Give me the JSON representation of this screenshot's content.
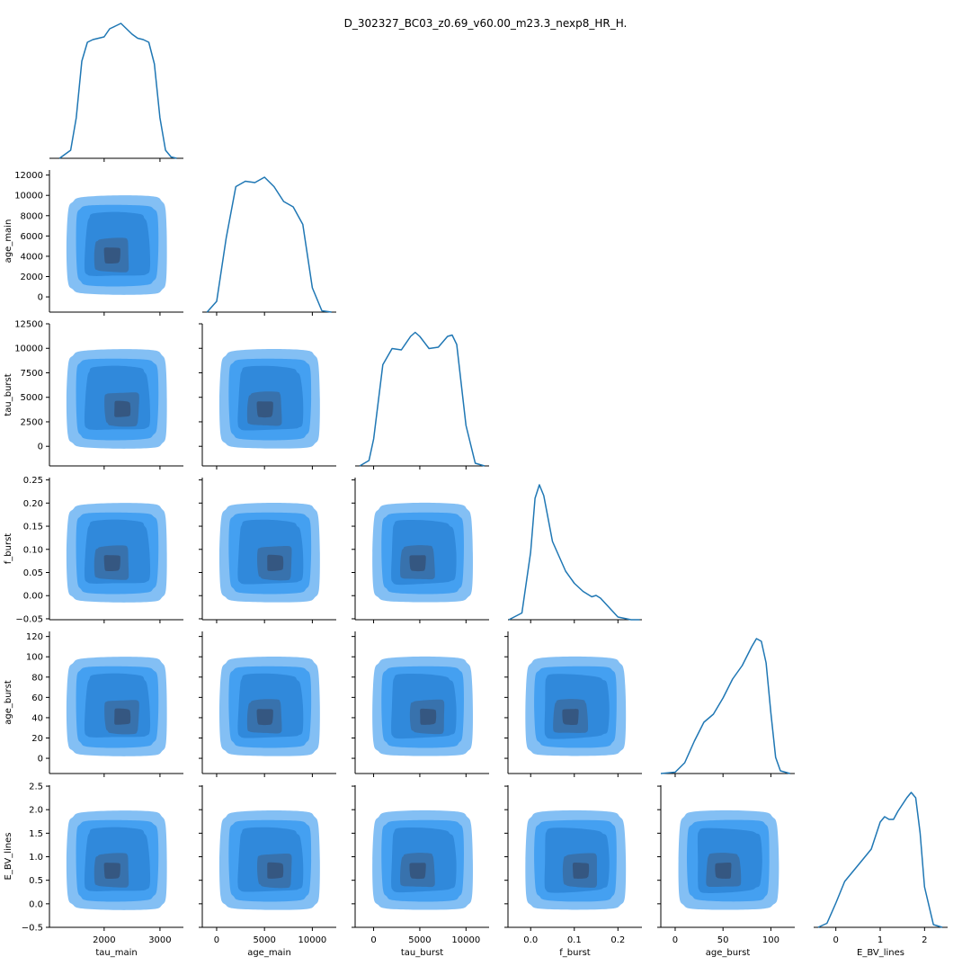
{
  "figure": {
    "title": "D_302327_BC03_z0.69_v60.00_m23.3_nexp8_HR_H."
  },
  "colors": {
    "line": "#1f77b4",
    "fill": "#3a9af0",
    "dark": "#2f4f6f",
    "axis": "#000000"
  },
  "chart_data": {
    "type": "pairplot",
    "variables": [
      "tau_main",
      "age_main",
      "tau_burst",
      "f_burst",
      "age_burst",
      "E_BV_lines"
    ],
    "axes": {
      "tau_main": {
        "label": "tau_main",
        "lim": [
          1020,
          3420
        ],
        "ticks": [
          2000,
          3000
        ],
        "tick_labels": [
          "2000",
          "3000"
        ]
      },
      "age_main": {
        "label": "age_main",
        "lim": [
          -1500,
          12500
        ],
        "ticks": [
          0,
          5000,
          10000
        ],
        "tick_labels": [
          "0",
          "5000",
          "10000"
        ]
      },
      "tau_burst": {
        "label": "tau_burst",
        "lim": [
          -2000,
          12500
        ],
        "ticks": [
          0,
          5000,
          10000
        ],
        "tick_labels": [
          "0",
          "5000",
          "10000"
        ]
      },
      "f_burst": {
        "label": "f_burst",
        "lim": [
          -0.052,
          0.255
        ],
        "ticks": [
          0.0,
          0.1,
          0.2
        ],
        "tick_labels": [
          "0.0",
          "0.1",
          "0.2"
        ]
      },
      "age_burst": {
        "label": "age_burst",
        "lim": [
          -15,
          125
        ],
        "ticks": [
          0,
          50,
          100
        ],
        "tick_labels": [
          "0",
          "50",
          "100"
        ]
      },
      "E_BV_lines": {
        "label": "E_BV_lines",
        "lim": [
          -0.5,
          2.52
        ],
        "ticks": [
          0,
          1,
          2
        ],
        "tick_labels": [
          "0",
          "1",
          "2"
        ]
      }
    },
    "y_axes": {
      "age_main": {
        "lim": [
          -1500,
          12500
        ],
        "ticks": [
          0,
          2000,
          4000,
          6000,
          8000,
          10000,
          12000
        ],
        "tick_labels": [
          "0",
          "2000",
          "4000",
          "6000",
          "8000",
          "10000",
          "12000"
        ]
      },
      "tau_burst": {
        "lim": [
          -2000,
          12500
        ],
        "ticks": [
          0,
          2500,
          5000,
          7500,
          10000,
          12500
        ],
        "tick_labels": [
          "0",
          "2500",
          "5000",
          "7500",
          "10000",
          "12500"
        ]
      },
      "f_burst": {
        "lim": [
          -0.052,
          0.255
        ],
        "ticks": [
          -0.05,
          0.0,
          0.05,
          0.1,
          0.15,
          0.2,
          0.25
        ],
        "tick_labels": [
          "−0.05",
          "0.00",
          "0.05",
          "0.10",
          "0.15",
          "0.20",
          "0.25"
        ]
      },
      "age_burst": {
        "lim": [
          -15,
          125
        ],
        "ticks": [
          0,
          20,
          40,
          60,
          80,
          100,
          120
        ],
        "tick_labels": [
          "0",
          "20",
          "40",
          "60",
          "80",
          "100",
          "120"
        ]
      },
      "E_BV_lines": {
        "lim": [
          -0.5,
          2.52
        ],
        "ticks": [
          -0.5,
          0.0,
          0.5,
          1.0,
          1.5,
          2.0,
          2.5
        ],
        "tick_labels": [
          "−0.5",
          "0.0",
          "0.5",
          "1.0",
          "1.5",
          "2.0",
          "2.5"
        ]
      }
    },
    "diagonal_kde": {
      "tau_main": {
        "x": [
          1200,
          1400,
          1500,
          1600,
          1700,
          1800,
          2000,
          2100,
          2200,
          2300,
          2400,
          2500,
          2600,
          2700,
          2800,
          2900,
          3000,
          3100,
          3200,
          3300
        ],
        "y": [
          0,
          0.06,
          0.3,
          0.72,
          0.86,
          0.88,
          0.9,
          0.96,
          0.98,
          1.0,
          0.96,
          0.92,
          0.89,
          0.88,
          0.86,
          0.7,
          0.3,
          0.06,
          0.01,
          0
        ]
      },
      "age_main": {
        "x": [
          -1000,
          0,
          1000,
          2000,
          3000,
          4000,
          5000,
          6000,
          7000,
          8000,
          9000,
          10000,
          11000,
          12000
        ],
        "y": [
          0,
          0.08,
          0.55,
          0.93,
          0.97,
          0.96,
          1.0,
          0.93,
          0.82,
          0.78,
          0.65,
          0.18,
          0.01,
          0
        ]
      },
      "tau_burst": {
        "x": [
          -1500,
          -500,
          0,
          1000,
          2000,
          3000,
          4000,
          4500,
          5000,
          6000,
          7000,
          8000,
          8500,
          9000,
          10000,
          11000,
          12000
        ],
        "y": [
          0,
          0.04,
          0.2,
          0.75,
          0.87,
          0.86,
          0.96,
          0.99,
          0.96,
          0.87,
          0.88,
          0.96,
          0.97,
          0.9,
          0.3,
          0.02,
          0
        ]
      },
      "f_burst": {
        "x": [
          -0.05,
          -0.02,
          0.0,
          0.01,
          0.02,
          0.03,
          0.05,
          0.08,
          0.1,
          0.12,
          0.14,
          0.15,
          0.16,
          0.18,
          0.2,
          0.23,
          0.25
        ],
        "y": [
          0,
          0.05,
          0.5,
          0.9,
          1.0,
          0.92,
          0.58,
          0.36,
          0.27,
          0.21,
          0.17,
          0.18,
          0.16,
          0.09,
          0.02,
          0,
          0
        ]
      },
      "age_burst": {
        "x": [
          -15,
          0,
          10,
          20,
          30,
          40,
          50,
          60,
          70,
          80,
          85,
          90,
          95,
          100,
          105,
          110,
          120
        ],
        "y": [
          0,
          0.01,
          0.08,
          0.24,
          0.38,
          0.44,
          0.56,
          0.7,
          0.8,
          0.94,
          1.0,
          0.98,
          0.82,
          0.45,
          0.12,
          0.02,
          0
        ]
      },
      "E_BV_lines": {
        "x": [
          -0.4,
          -0.2,
          0.0,
          0.2,
          0.4,
          0.6,
          0.8,
          1.0,
          1.1,
          1.2,
          1.3,
          1.4,
          1.6,
          1.7,
          1.8,
          1.9,
          2.0,
          2.2,
          2.4
        ],
        "y": [
          0,
          0.03,
          0.18,
          0.34,
          0.42,
          0.5,
          0.58,
          0.78,
          0.82,
          0.8,
          0.8,
          0.86,
          0.96,
          1.0,
          0.96,
          0.7,
          0.3,
          0.02,
          0
        ]
      }
    },
    "offdiagonal": "filled_kde_contours"
  }
}
